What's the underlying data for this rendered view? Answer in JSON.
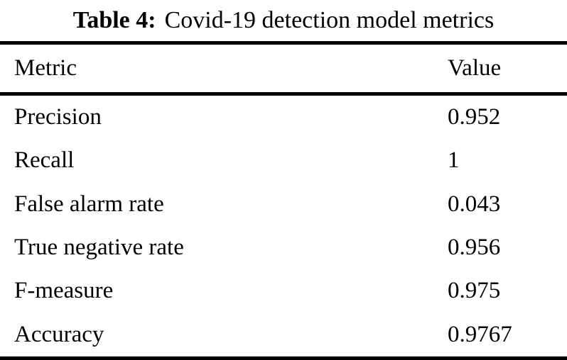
{
  "table": {
    "caption_label": "Table 4:",
    "caption_text": "Covid-19 detection model metrics",
    "columns": [
      "Metric",
      "Value"
    ],
    "rows": [
      {
        "metric": "Precision",
        "value": "0.952"
      },
      {
        "metric": "Recall",
        "value": "1"
      },
      {
        "metric": "False alarm rate",
        "value": "0.043"
      },
      {
        "metric": "True negative rate",
        "value": "0.956"
      },
      {
        "metric": "F-measure",
        "value": "0.975"
      },
      {
        "metric": "Accuracy",
        "value": "0.9767"
      }
    ],
    "colors": {
      "text": "#000000",
      "background": "#ffffff",
      "rule": "#000000"
    }
  }
}
